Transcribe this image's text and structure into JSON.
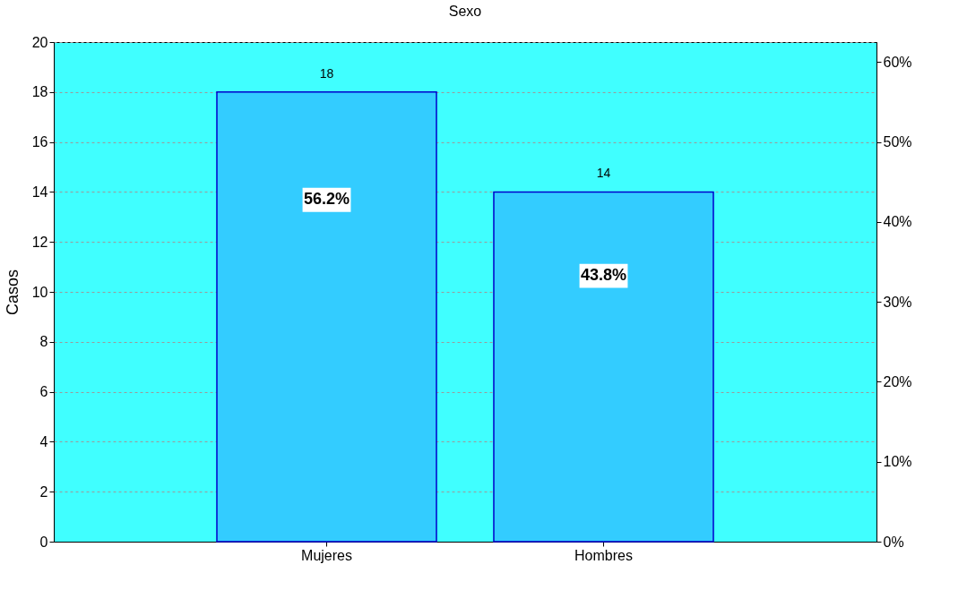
{
  "chart_data": {
    "type": "bar",
    "title": "Sexo",
    "ylabel": "Casos",
    "categories": [
      "Mujeres",
      "Hombres"
    ],
    "values": [
      18,
      14
    ],
    "color": "#33ccff",
    "data_labels": true,
    "ylim": [
      0,
      20
    ],
    "yticks": [
      0,
      2,
      4,
      6,
      8,
      10,
      12,
      14,
      16,
      18,
      20
    ],
    "y2lim": [
      0,
      62.5
    ],
    "y2ticks": [
      {
        "value": 0,
        "label": "0%"
      },
      {
        "value": 10,
        "label": "10%"
      },
      {
        "value": 20,
        "label": "20%"
      },
      {
        "value": 30,
        "label": "30%"
      },
      {
        "value": 40,
        "label": "40%"
      },
      {
        "value": 50,
        "label": "50%"
      },
      {
        "value": 60,
        "label": "60%"
      }
    ],
    "annotations": [
      "56.2%",
      "43.8%"
    ],
    "grid": "y"
  }
}
